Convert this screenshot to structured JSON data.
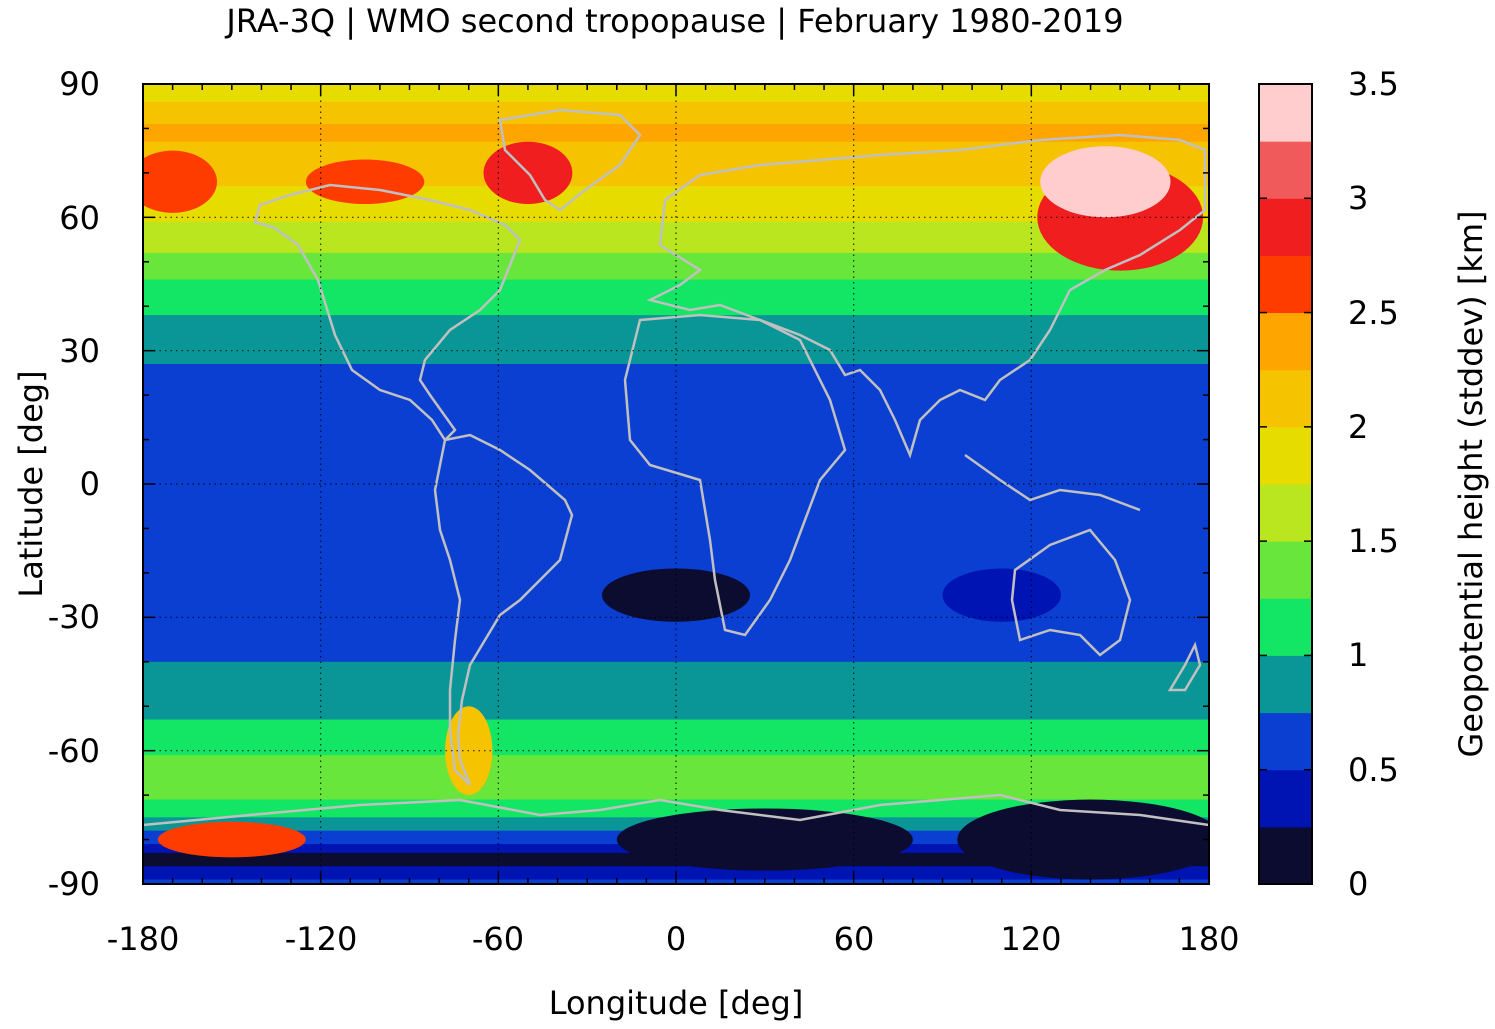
{
  "title": "JRA-3Q | WMO second tropopause | February 1980-2019",
  "xlabel": "Longitude [deg]",
  "ylabel": "Latitude [deg]",
  "colorbar_label": "Geopotential height (stddev) [km]",
  "x_ticks": [
    "-180",
    "-120",
    "-60",
    "0",
    "60",
    "120",
    "180"
  ],
  "y_ticks": [
    "90",
    "60",
    "30",
    "0",
    "-30",
    "-60",
    "-90"
  ],
  "colorbar_ticks": [
    "3.5",
    "3",
    "2.5",
    "2",
    "1.5",
    "1",
    "0.5",
    "0"
  ],
  "chart_data": {
    "type": "heatmap",
    "projection": "equirectangular",
    "xlim": [
      -180,
      180
    ],
    "ylim": [
      -90,
      90
    ],
    "x_tick_values": [
      -180,
      -120,
      -60,
      0,
      60,
      120,
      180
    ],
    "y_tick_values": [
      90,
      60,
      30,
      0,
      -30,
      -60,
      -90
    ],
    "grid": true,
    "coastlines": true,
    "coastline_color": "#c0c0c0",
    "colorbar_range": [
      0,
      3.5
    ],
    "colorbar_tick_values": [
      3.5,
      3,
      2.5,
      2,
      1.5,
      1,
      0.5,
      0
    ],
    "color_levels": [
      {
        "min": 0.0,
        "max": 0.25,
        "color": "#0c0c30"
      },
      {
        "min": 0.25,
        "max": 0.5,
        "color": "#0014b4"
      },
      {
        "min": 0.5,
        "max": 0.75,
        "color": "#0a3fd2"
      },
      {
        "min": 0.75,
        "max": 1.0,
        "color": "#0a9696"
      },
      {
        "min": 1.0,
        "max": 1.25,
        "color": "#12e664"
      },
      {
        "min": 1.25,
        "max": 1.5,
        "color": "#69e63c"
      },
      {
        "min": 1.5,
        "max": 1.75,
        "color": "#b9e61e"
      },
      {
        "min": 1.75,
        "max": 2.0,
        "color": "#e6dc00"
      },
      {
        "min": 2.0,
        "max": 2.25,
        "color": "#f5c300"
      },
      {
        "min": 2.25,
        "max": 2.5,
        "color": "#ffa500"
      },
      {
        "min": 2.5,
        "max": 2.75,
        "color": "#ff3c00"
      },
      {
        "min": 2.75,
        "max": 3.0,
        "color": "#f01e1e"
      },
      {
        "min": 3.0,
        "max": 3.25,
        "color": "#f05a5a"
      },
      {
        "min": 3.25,
        "max": 3.5,
        "color": "#ffcdcd"
      }
    ],
    "zonal_profile": [
      {
        "lat": 90,
        "value": 1.8
      },
      {
        "lat": 80,
        "value": 2.3
      },
      {
        "lat": 70,
        "value": 2.1
      },
      {
        "lat": 60,
        "value": 1.8
      },
      {
        "lat": 50,
        "value": 1.4
      },
      {
        "lat": 40,
        "value": 1.05
      },
      {
        "lat": 32,
        "value": 0.85
      },
      {
        "lat": 20,
        "value": 0.6
      },
      {
        "lat": 10,
        "value": 0.5
      },
      {
        "lat": 0,
        "value": 0.5
      },
      {
        "lat": -10,
        "value": 0.55
      },
      {
        "lat": -25,
        "value": 0.6
      },
      {
        "lat": -40,
        "value": 0.75
      },
      {
        "lat": -50,
        "value": 0.9
      },
      {
        "lat": -60,
        "value": 1.2
      },
      {
        "lat": -67,
        "value": 1.5
      },
      {
        "lat": -75,
        "value": 1.0
      },
      {
        "lat": -85,
        "value": 0.1
      },
      {
        "lat": -90,
        "value": 0.6
      }
    ],
    "anomalies": [
      {
        "lon": 150,
        "lat": 60,
        "rx": 28,
        "ry": 12,
        "value": 2.8
      },
      {
        "lon": 145,
        "lat": 68,
        "rx": 22,
        "ry": 8,
        "value": 3.3
      },
      {
        "lon": -50,
        "lat": 70,
        "rx": 15,
        "ry": 7,
        "value": 2.8
      },
      {
        "lon": -170,
        "lat": 68,
        "rx": 15,
        "ry": 7,
        "value": 2.7
      },
      {
        "lon": -105,
        "lat": 68,
        "rx": 20,
        "ry": 5,
        "value": 2.7
      },
      {
        "lon": -70,
        "lat": -60,
        "rx": 8,
        "ry": 10,
        "value": 2.0
      },
      {
        "lon": 0,
        "lat": -25,
        "rx": 25,
        "ry": 6,
        "value": 0.2
      },
      {
        "lon": 110,
        "lat": -25,
        "rx": 20,
        "ry": 6,
        "value": 0.25
      },
      {
        "lon": 140,
        "lat": -80,
        "rx": 45,
        "ry": 9,
        "value": 0.05
      },
      {
        "lon": 30,
        "lat": -80,
        "rx": 50,
        "ry": 7,
        "value": 0.05
      },
      {
        "lon": -150,
        "lat": -80,
        "rx": 25,
        "ry": 4,
        "value": 2.6
      }
    ]
  }
}
